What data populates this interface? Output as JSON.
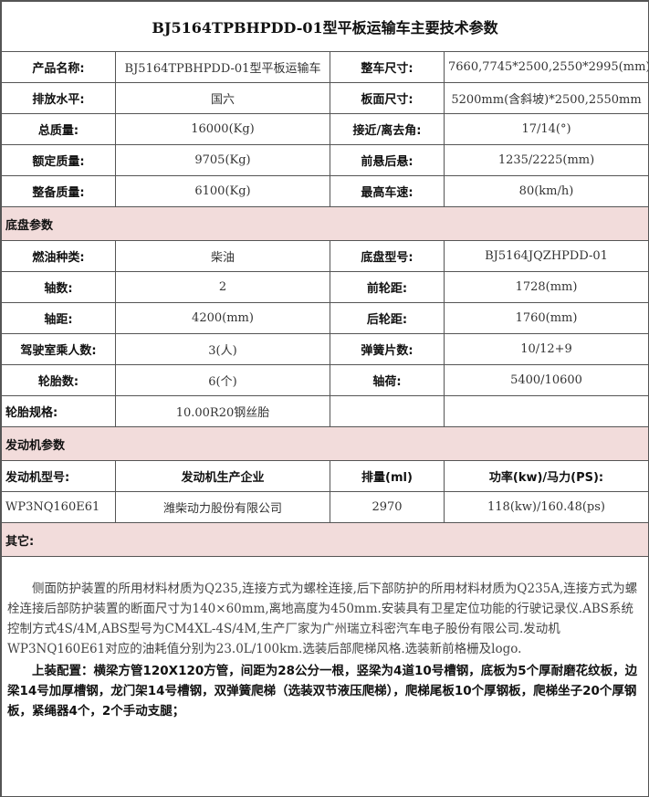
{
  "title": "BJ5164TPBHPDD-01型平板运输车主要技术参数",
  "main_rows": [
    [
      "产品名称:",
      "BJ5164TPBHPDD-01型平板运输车",
      "整车尺寸:",
      "7660,7745*2500,2550*2995(mm)"
    ],
    [
      "排放水平:",
      "国六",
      "板面尺寸:",
      "5200mm(含斜坡)*2500,2550mm"
    ],
    [
      "总质量:",
      "16000(Kg)",
      "接近/离去角:",
      "17/14(°)"
    ],
    [
      "额定质量:",
      "9705(Kg)",
      "前悬后悬:",
      "1235/2225(mm)"
    ],
    [
      "整备质量:",
      "6100(Kg)",
      "最高车速:",
      "80(km/h)"
    ]
  ],
  "chassis_title": "底盘参数",
  "chassis_rows": [
    [
      "燃油种类:",
      "柴油",
      "底盘型号:",
      "BJ5164JQZHPDD-01"
    ],
    [
      "轴数:",
      "2",
      "前轮距:",
      "1728(mm)"
    ],
    [
      "轴距:",
      "4200(mm)",
      "后轮距:",
      "1760(mm)"
    ],
    [
      "驾驶室乘人数:",
      "3(人)",
      "弹簧片数:",
      "10/12+9"
    ],
    [
      "轮胎数:",
      "6(个)",
      "轴荷:",
      "5400/10600"
    ]
  ],
  "tire_label": "轮胎规格:",
  "tire_value": "10.00R20钢丝胎",
  "engine_title": "发动机参数",
  "engine_headers": [
    "发动机型号:",
    "发动机生产企业",
    "排量(ml)",
    "功率(kw)/马力(PS):"
  ],
  "engine_values": [
    "WP3NQ160E61",
    "潍柴动力股份有限公司",
    "2970",
    "118(kw)/160.48(ps)"
  ],
  "other_title": "其它:",
  "other_text": "侧面防护装置的所用材料材质为Q235,连接方式为螺栓连接,后下部防护的所用材料材质为Q235A,连接方式为螺栓连接后部防护装置的断面尺寸为140×60mm,离地高度为450mm.安装具有卫星定位功能的行驶记录仪.ABS系统控制方式4S/4M,ABS型号为CM4XL-4S/4M,生产厂家为广州瑞立科密汽车电子股份有限公司.发动机WP3NQ160E61对应的油耗值分别为23.0L/100km.选装后部爬梯风格.选装新前格栅及logo.",
  "config_text": "上装配置：横梁方管120X120方管，间距为28公分一根，竖梁为4道10号槽钢，底板为5个厚耐磨花纹板，边梁14号加厚槽钢，龙门架14号槽钢，双弹簧爬梯（选装双节液压爬梯），爬梯尾板10个厚钢板，爬梯坐子20个厚钢板，紧绳器4个，2个手动支腿；",
  "colors": {
    "section_bg": "#f2dcdb"
  }
}
